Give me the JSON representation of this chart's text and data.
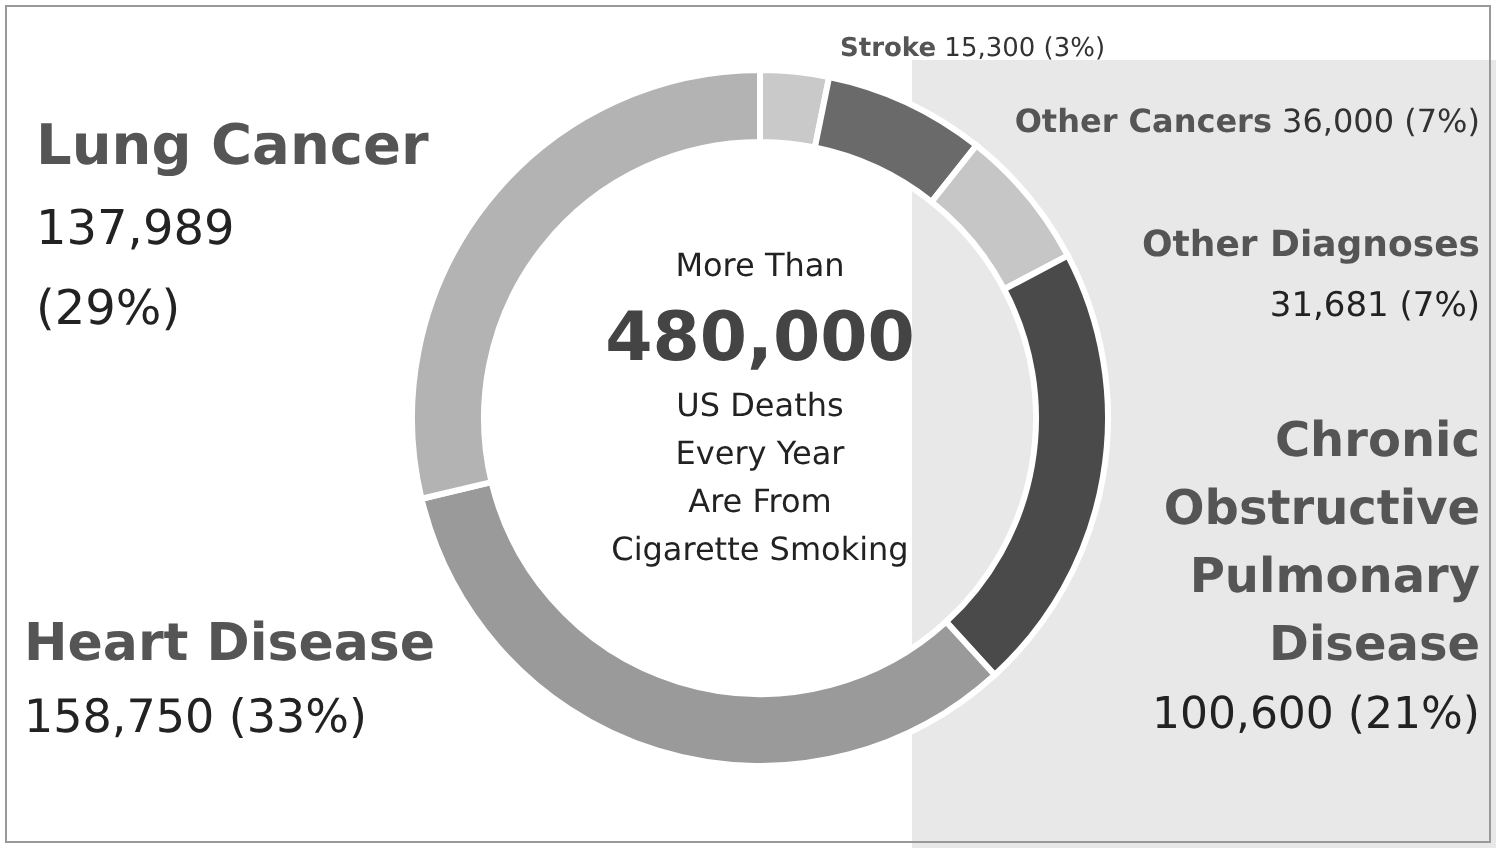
{
  "chart_data": {
    "type": "donut",
    "categories": [
      "Stroke",
      "Other Cancers",
      "Other Diagnoses",
      "Chronic Obstructive Pulmonary Disease",
      "Heart Disease",
      "Lung Cancer"
    ],
    "values": [
      15300,
      36000,
      31681,
      100600,
      158750,
      137989
    ],
    "colors": [
      "#c9c9c9",
      "#6a6a6a",
      "#c6c6c6",
      "#4a4a4a",
      "#9a9a9a",
      "#b3b3b3"
    ],
    "value_labels": [
      "15,300 (3%)",
      "36,000 (7%)",
      "31,681 (7%)",
      "100,600 (21%)",
      "158,750 (33%)",
      "137,989 (29%)"
    ],
    "annotations": [
      "More Than",
      "480,000",
      "US Deaths",
      "Every Year",
      "Are From",
      "Cigarette Smoking"
    ]
  }
}
